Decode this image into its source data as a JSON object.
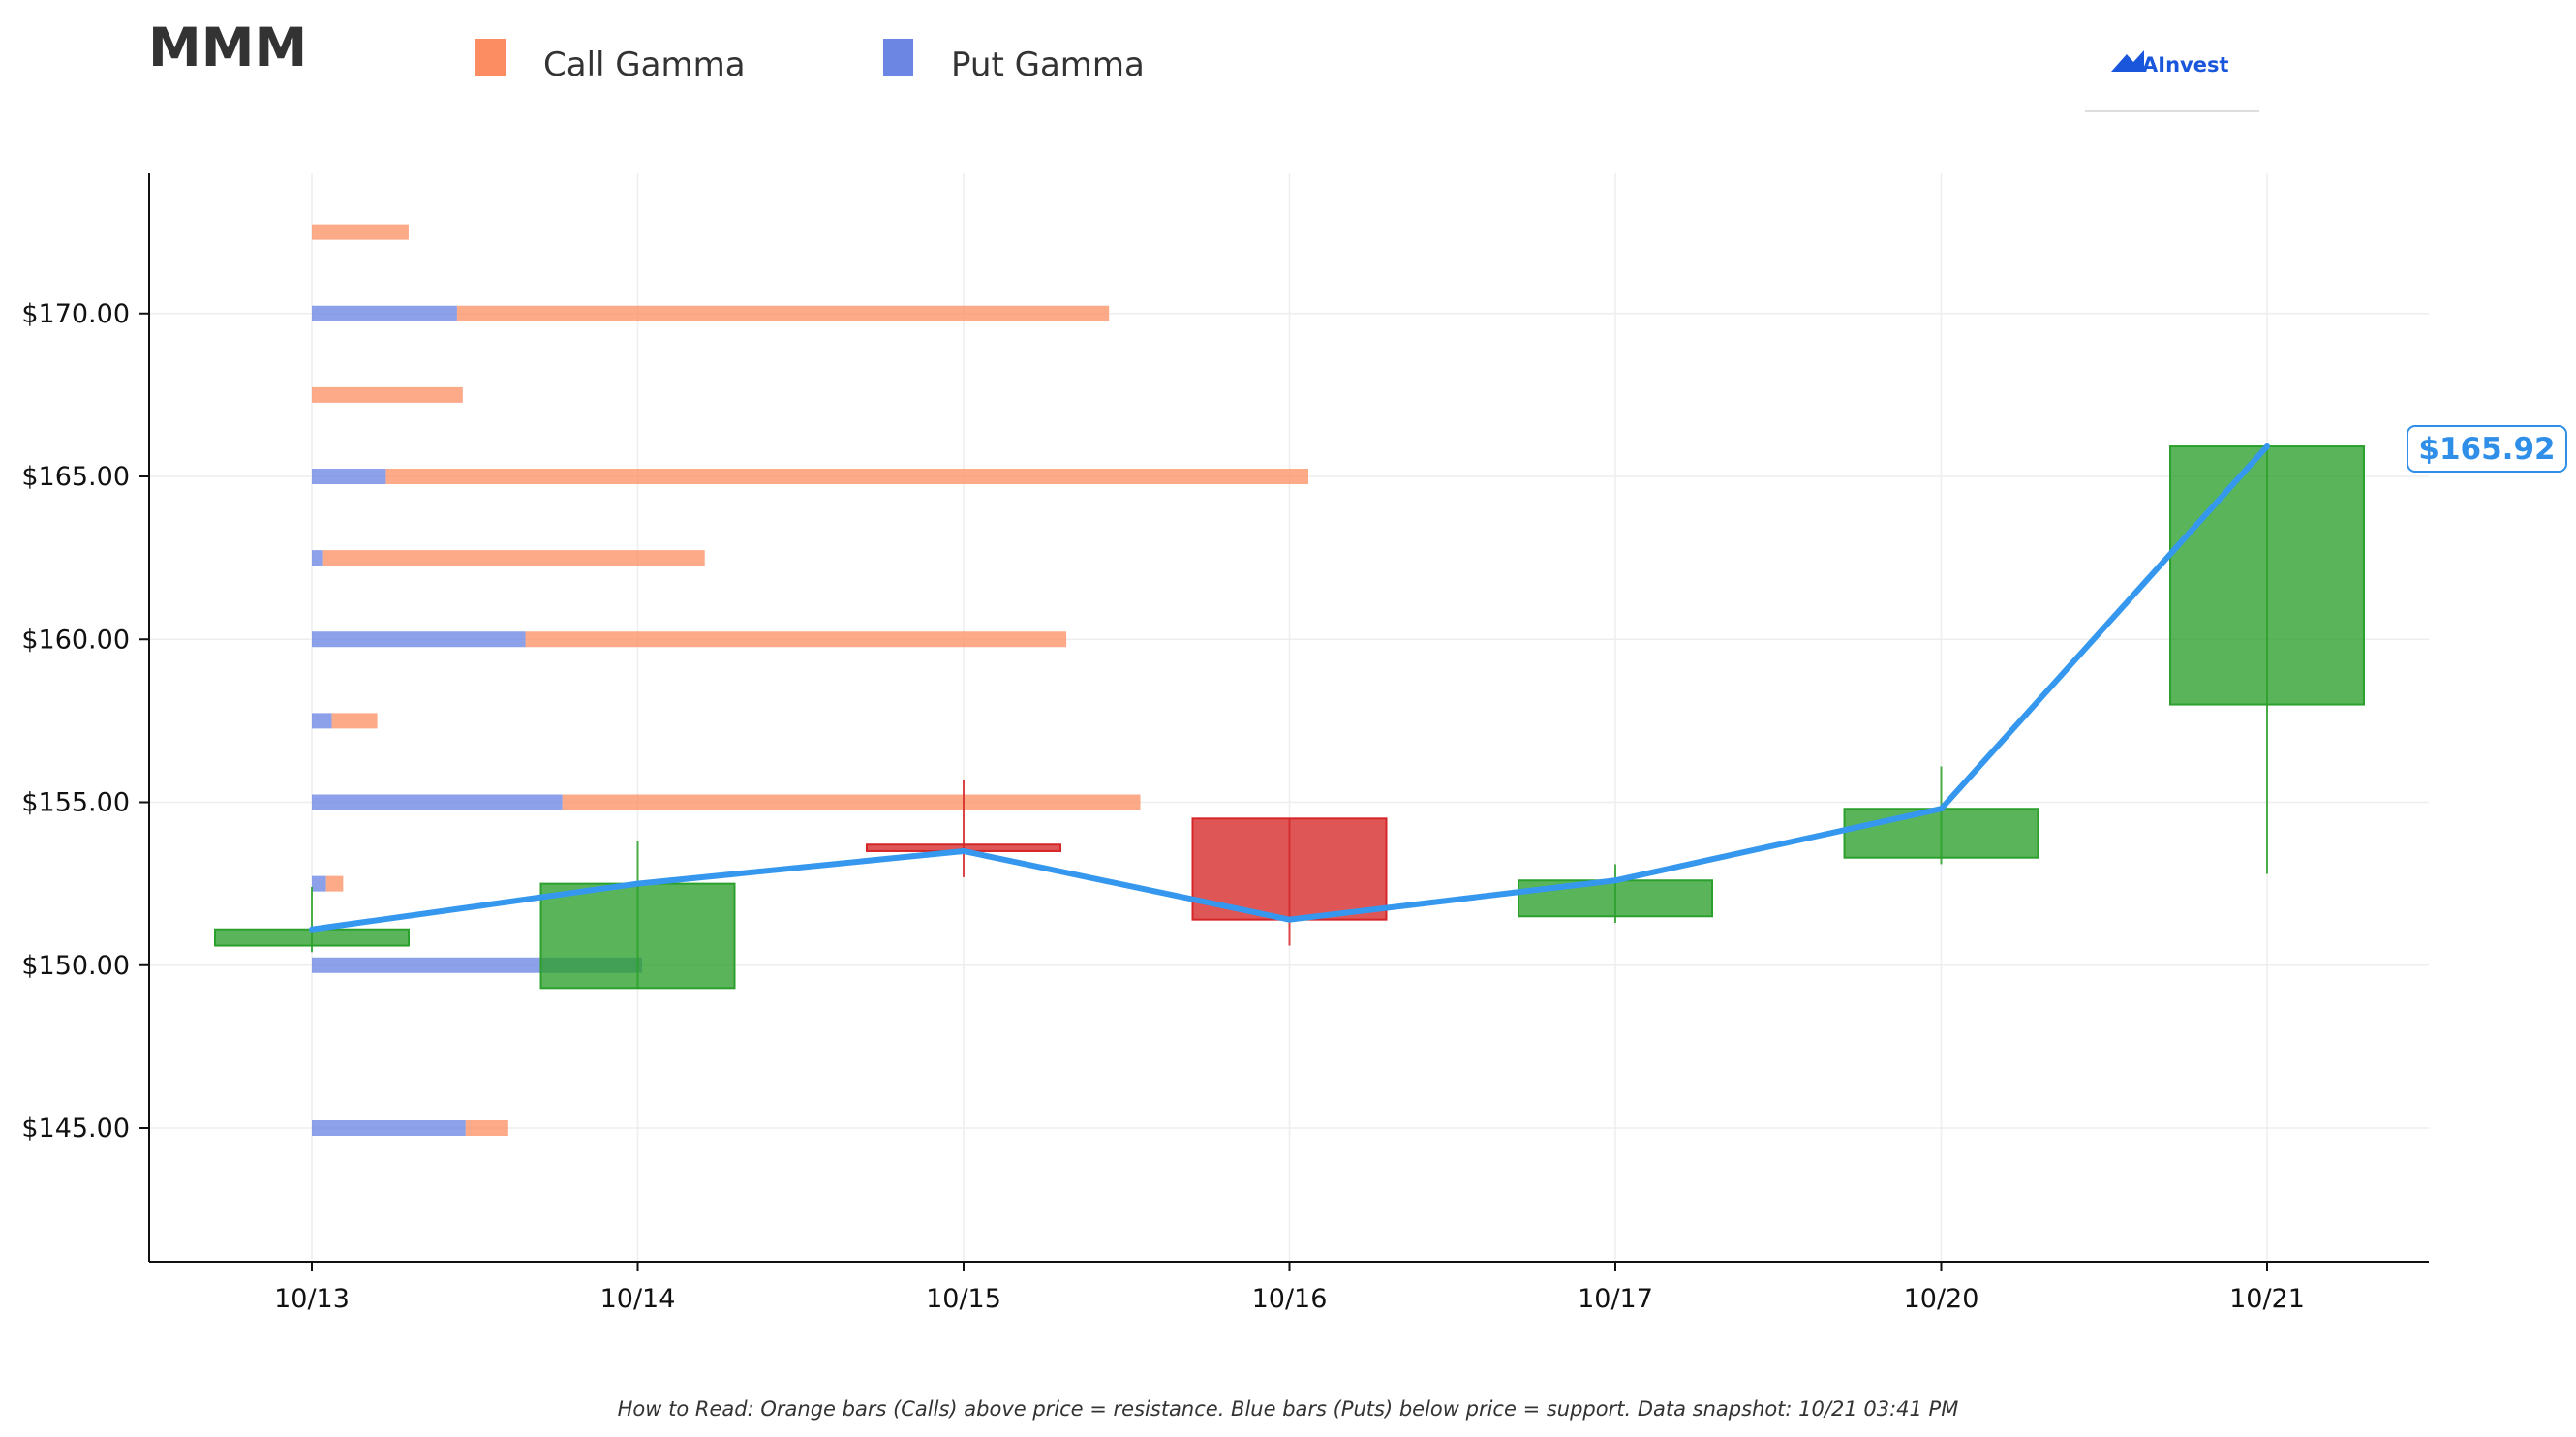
{
  "ticker": "MMM",
  "brand": "AInvest",
  "footnote": "How to Read: Orange bars (Calls) above price = resistance. Blue bars (Puts) below price = support. Data snapshot: 10/21 03:41 PM",
  "colors": {
    "call": "#fc8d62",
    "put": "#6b86e3",
    "up": "#2ca02c",
    "down": "#d62728",
    "price_line": "#3597ee",
    "axis": "#111111",
    "grid": "#eeeeee"
  },
  "chart_data": {
    "type": "candlestick",
    "categories": [
      "10/13",
      "10/14",
      "10/15",
      "10/16",
      "10/17",
      "10/20",
      "10/21"
    ],
    "ohlc": [
      {
        "date": "10/13",
        "open": 150.6,
        "high": 152.4,
        "low": 150.4,
        "close": 151.1
      },
      {
        "date": "10/14",
        "open": 149.3,
        "high": 153.8,
        "low": 149.3,
        "close": 152.5
      },
      {
        "date": "10/15",
        "open": 153.7,
        "high": 155.7,
        "low": 152.7,
        "close": 153.5
      },
      {
        "date": "10/16",
        "open": 154.5,
        "high": 154.5,
        "low": 150.6,
        "close": 151.4
      },
      {
        "date": "10/17",
        "open": 151.5,
        "high": 153.1,
        "low": 151.3,
        "close": 152.6
      },
      {
        "date": "10/20",
        "open": 153.3,
        "high": 156.1,
        "low": 153.1,
        "close": 154.8
      },
      {
        "date": "10/21",
        "open": 158.0,
        "high": 166.0,
        "low": 152.8,
        "close": 165.92
      }
    ],
    "close_line": [
      151.1,
      152.5,
      153.5,
      151.4,
      152.6,
      154.8,
      165.92
    ],
    "last_price_label": "$165.92",
    "gamma_series": [
      {
        "name": "Call Gamma",
        "color": "#fc8d62"
      },
      {
        "name": "Put Gamma",
        "color": "#6b86e3"
      }
    ],
    "gamma_profile": [
      {
        "strike": 172.5,
        "put": 0.0,
        "call": 0.34
      },
      {
        "strike": 170.0,
        "put": 0.51,
        "call": 2.29
      },
      {
        "strike": 167.5,
        "put": 0.0,
        "call": 0.53
      },
      {
        "strike": 165.0,
        "put": 0.26,
        "call": 3.24
      },
      {
        "strike": 162.5,
        "put": 0.04,
        "call": 1.34
      },
      {
        "strike": 160.0,
        "put": 0.75,
        "call": 1.9
      },
      {
        "strike": 157.5,
        "put": 0.07,
        "call": 0.16
      },
      {
        "strike": 155.0,
        "put": 0.88,
        "call": 2.03
      },
      {
        "strike": 152.5,
        "put": 0.05,
        "call": 0.06
      },
      {
        "strike": 150.0,
        "put": 1.16,
        "call": 0.0
      },
      {
        "strike": 145.0,
        "put": 0.54,
        "call": 0.15
      }
    ],
    "y_ticks": [
      {
        "value": 145,
        "label": "$145.00"
      },
      {
        "value": 150,
        "label": "$150.00"
      },
      {
        "value": 155,
        "label": "$155.00"
      },
      {
        "value": 160,
        "label": "$160.00"
      },
      {
        "value": 165,
        "label": "$165.00"
      },
      {
        "value": 170,
        "label": "$170.00"
      }
    ],
    "ylim": [
      141,
      174.5
    ],
    "grid": true,
    "legend_position": "top-left"
  }
}
